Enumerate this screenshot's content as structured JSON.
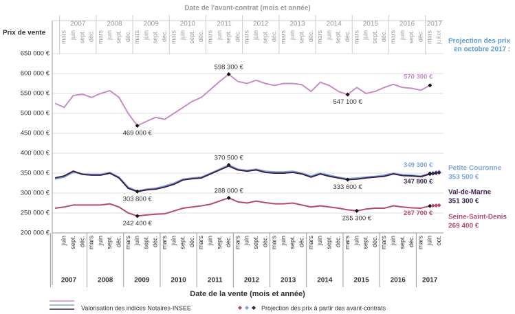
{
  "chart_data": {
    "type": "line",
    "title": "Date de l'avant-contrat (mois et année)",
    "y_label": "Prix de vente",
    "x_label": "Date de la vente (mois et année)",
    "categories": [
      null,
      "juin",
      "sept.",
      "déc.",
      "mars",
      "juin",
      "sept.",
      "déc.",
      "mars",
      "juin",
      "sept.",
      "déc.",
      "mars",
      "juin",
      "sept.",
      "déc.",
      "mars",
      "juin",
      "sept.",
      "déc.",
      "mars",
      "juin",
      "sept.",
      "déc.",
      "mars",
      "juin",
      "sept.",
      "déc.",
      "mars",
      "juin",
      "sept.",
      "déc.",
      "mars",
      "juin",
      "sept.",
      "déc.",
      "mars",
      "juin",
      "sept.",
      "déc.",
      "mars",
      "juin",
      "oct."
    ],
    "years": [
      "2007",
      "2008",
      "2009",
      "2010",
      "2011",
      "2012",
      "2013",
      "2014",
      "2015",
      "2016",
      "2017"
    ],
    "top_axis": {
      "years": [
        "2007",
        "2008",
        "2009",
        "2010",
        "2011",
        "2012",
        "2013",
        "2014",
        "2015",
        "2016",
        "2017"
      ],
      "months": [
        "mars",
        "juin",
        "sept.",
        "déc."
      ],
      "last_month": "juillet"
    },
    "ylim": [
      200000,
      650000
    ],
    "yticks": [
      {
        "value": 200000,
        "label": "200 000 €"
      },
      {
        "value": 250000,
        "label": "250 000 €"
      },
      {
        "value": 300000,
        "label": "300 000 €"
      },
      {
        "value": 350000,
        "label": "350 000 €"
      },
      {
        "value": 400000,
        "label": "400 000 €"
      },
      {
        "value": 450000,
        "label": "450 000 €"
      },
      {
        "value": 500000,
        "label": "500 000 €"
      },
      {
        "value": 550000,
        "label": "550 000 €"
      },
      {
        "value": 600000,
        "label": "600 000 €"
      },
      {
        "value": 650000,
        "label": "650 000 €"
      }
    ],
    "grid": true,
    "projection_title": [
      "Projection des prix",
      "en octobre 2017 :"
    ],
    "series": [
      {
        "color": "#c88ac8",
        "values": [
          525000,
          515000,
          545000,
          548000,
          540000,
          550000,
          557000,
          540000,
          500000,
          469000,
          480000,
          490000,
          485000,
          500000,
          515000,
          530000,
          540000,
          560000,
          580000,
          598300,
          580000,
          575000,
          583000,
          575000,
          570000,
          575000,
          575000,
          572000,
          555000,
          578000,
          570000,
          555000,
          547100,
          565000,
          550000,
          555000,
          565000,
          573000,
          565000,
          563000,
          558000,
          570300,
          null
        ],
        "value_labels": [
          null,
          null,
          null,
          null,
          null,
          null,
          null,
          null,
          null,
          "469 000 €",
          null,
          null,
          null,
          null,
          null,
          null,
          null,
          null,
          null,
          "598 300 €",
          null,
          null,
          null,
          null,
          null,
          null,
          null,
          null,
          null,
          null,
          null,
          null,
          "547 100 €",
          null,
          null,
          null,
          null,
          null,
          null,
          null,
          null,
          "570 300 €",
          null
        ]
      },
      {
        "name": "Petite Couronne",
        "color": "#7ea6d8",
        "values": [
          335000,
          340000,
          352000,
          348000,
          347000,
          347000,
          352000,
          340000,
          315000,
          305000,
          310000,
          312000,
          318000,
          325000,
          335000,
          338000,
          340000,
          350000,
          360000,
          370500,
          360000,
          357000,
          360000,
          355000,
          353000,
          353000,
          355000,
          350000,
          343000,
          350000,
          345000,
          340000,
          336000,
          338000,
          340000,
          342000,
          345000,
          350000,
          346000,
          345000,
          343000,
          349300,
          null
        ],
        "value_labels": [
          null,
          null,
          null,
          null,
          null,
          null,
          null,
          null,
          null,
          null,
          null,
          null,
          null,
          null,
          null,
          null,
          null,
          null,
          null,
          "370 500 €",
          null,
          null,
          null,
          null,
          null,
          null,
          null,
          null,
          null,
          null,
          null,
          null,
          null,
          null,
          null,
          null,
          null,
          null,
          null,
          null,
          null,
          "349 300 €",
          null
        ],
        "projection": 353500,
        "projection_label": "353 500 €"
      },
      {
        "name": "Val-de-Marne",
        "color": "#3d1f4e",
        "values": [
          338000,
          343000,
          355000,
          347000,
          345000,
          345000,
          350000,
          338000,
          312000,
          303800,
          308000,
          310000,
          315000,
          322000,
          333000,
          336000,
          338000,
          348000,
          358000,
          368000,
          358000,
          355000,
          358000,
          352000,
          350000,
          350000,
          352000,
          348000,
          340000,
          348000,
          342000,
          338000,
          333600,
          335000,
          338000,
          340000,
          342000,
          348000,
          344000,
          343000,
          341000,
          347800,
          null
        ],
        "value_labels": [
          null,
          null,
          null,
          null,
          null,
          null,
          null,
          null,
          null,
          "303 800 €",
          null,
          null,
          null,
          null,
          null,
          null,
          null,
          null,
          null,
          null,
          null,
          null,
          null,
          null,
          null,
          null,
          null,
          null,
          null,
          null,
          null,
          null,
          "333 600 €",
          null,
          null,
          null,
          null,
          null,
          null,
          null,
          null,
          "347 800 €",
          null
        ],
        "projection": 351300,
        "projection_label": "351 300 €"
      },
      {
        "name": "Seine-Saint-Denis",
        "color": "#b44a72",
        "values": [
          262000,
          265000,
          270000,
          270000,
          270000,
          270000,
          273000,
          265000,
          250000,
          242400,
          245000,
          247000,
          248000,
          255000,
          262000,
          265000,
          268000,
          272000,
          280000,
          288000,
          278000,
          275000,
          280000,
          276000,
          273000,
          273000,
          275000,
          270000,
          265000,
          268000,
          265000,
          262000,
          258000,
          255300,
          260000,
          262000,
          262000,
          268000,
          265000,
          263000,
          262000,
          267700,
          null
        ],
        "value_labels": [
          null,
          null,
          null,
          null,
          null,
          null,
          null,
          null,
          null,
          "242 400 €",
          null,
          null,
          null,
          null,
          null,
          null,
          null,
          null,
          null,
          "288 000 €",
          null,
          null,
          null,
          null,
          null,
          null,
          null,
          null,
          null,
          null,
          null,
          null,
          null,
          "255 300 €",
          null,
          null,
          null,
          null,
          null,
          null,
          null,
          "267 700 €",
          null
        ],
        "projection": 269400,
        "projection_label": "269 400 €"
      }
    ],
    "legend": [
      "Valorisation des indices Notaires-INSEE",
      "Projection des prix à partir des avant-contrats"
    ]
  }
}
